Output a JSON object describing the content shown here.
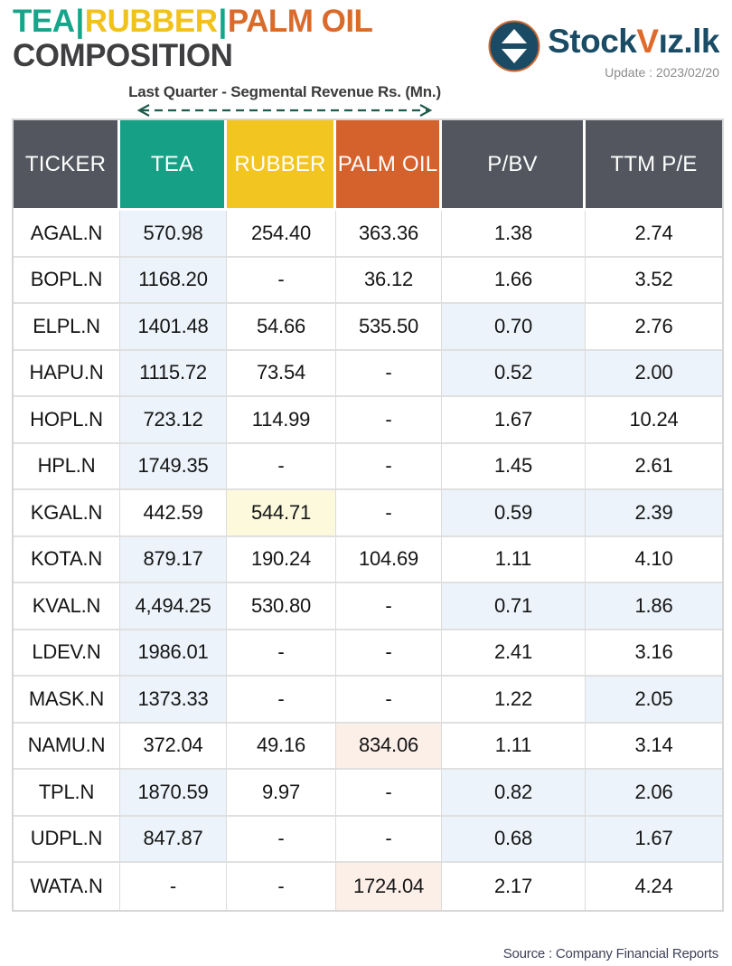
{
  "header": {
    "title": {
      "segments": [
        {
          "text": "TEA",
          "color": "#16A58A"
        },
        {
          "text": "|",
          "color": "#16A58A"
        },
        {
          "text": "RUBBER",
          "color": "#F1C21B"
        },
        {
          "text": "|",
          "color": "#16A58A"
        },
        {
          "text": "PALM OIL",
          "color": "#D96B2B"
        }
      ],
      "line2": "COMPOSITION"
    },
    "brand": {
      "prefix": "Stock",
      "accent": "V",
      "suffix": "ız.lk",
      "update_label": "Update : 2023/02/20",
      "navy": "#1A4C66",
      "orange": "#E06A2B"
    },
    "annotation": "Last Quarter - Segmental Revenue Rs. (Mn.)",
    "icons": {
      "logo": "up-down-arrows-circle-icon",
      "arrow": "double-headed-dashed-arrow-icon",
      "arrow_color": "#1E5B4D"
    }
  },
  "table": {
    "columns": [
      {
        "label": "TICKER",
        "bg": "#53565E"
      },
      {
        "label": "TEA",
        "bg": "#16A085"
      },
      {
        "label": "RUBBER",
        "bg": "#F3C521"
      },
      {
        "label": "PALM OIL",
        "bg": "#D5612C"
      },
      {
        "label": "P/BV",
        "bg": "#53565E"
      },
      {
        "label": "TTM P/E",
        "bg": "#53565E"
      }
    ],
    "highlight_colors": {
      "blue": "#ECF3FA",
      "yellow": "#FCF9DD",
      "pink": "#FCEFE8"
    },
    "rows": [
      {
        "ticker": "AGAL.N",
        "cells": [
          {
            "text": "570.98",
            "hl": "blue"
          },
          {
            "text": "254.40"
          },
          {
            "text": "363.36"
          },
          {
            "text": "1.38"
          },
          {
            "text": "2.74"
          }
        ]
      },
      {
        "ticker": "BOPL.N",
        "cells": [
          {
            "text": "1168.20",
            "hl": "blue"
          },
          {
            "text": "-"
          },
          {
            "text": "36.12"
          },
          {
            "text": "1.66"
          },
          {
            "text": "3.52"
          }
        ]
      },
      {
        "ticker": "ELPL.N",
        "cells": [
          {
            "text": "1401.48",
            "hl": "blue"
          },
          {
            "text": "54.66"
          },
          {
            "text": "535.50"
          },
          {
            "text": "0.70",
            "hl": "blue"
          },
          {
            "text": "2.76"
          }
        ]
      },
      {
        "ticker": "HAPU.N",
        "cells": [
          {
            "text": "1115.72",
            "hl": "blue"
          },
          {
            "text": "73.54"
          },
          {
            "text": "-"
          },
          {
            "text": "0.52",
            "hl": "blue"
          },
          {
            "text": "2.00",
            "hl": "blue"
          }
        ]
      },
      {
        "ticker": "HOPL.N",
        "cells": [
          {
            "text": "723.12",
            "hl": "blue"
          },
          {
            "text": "114.99"
          },
          {
            "text": "-"
          },
          {
            "text": "1.67"
          },
          {
            "text": "10.24"
          }
        ]
      },
      {
        "ticker": "HPL.N",
        "cells": [
          {
            "text": "1749.35",
            "hl": "blue"
          },
          {
            "text": "-"
          },
          {
            "text": "-"
          },
          {
            "text": "1.45"
          },
          {
            "text": "2.61"
          }
        ]
      },
      {
        "ticker": "KGAL.N",
        "cells": [
          {
            "text": "442.59"
          },
          {
            "text": "544.71",
            "hl": "yellow"
          },
          {
            "text": "-"
          },
          {
            "text": "0.59",
            "hl": "blue"
          },
          {
            "text": "2.39",
            "hl": "blue"
          }
        ]
      },
      {
        "ticker": "KOTA.N",
        "cells": [
          {
            "text": "879.17",
            "hl": "blue"
          },
          {
            "text": "190.24"
          },
          {
            "text": "104.69"
          },
          {
            "text": "1.11"
          },
          {
            "text": "4.10"
          }
        ]
      },
      {
        "ticker": "KVAL.N",
        "cells": [
          {
            "text": "4,494.25",
            "hl": "blue"
          },
          {
            "text": "530.80"
          },
          {
            "text": "-"
          },
          {
            "text": "0.71",
            "hl": "blue"
          },
          {
            "text": "1.86",
            "hl": "blue"
          }
        ]
      },
      {
        "ticker": "LDEV.N",
        "cells": [
          {
            "text": "1986.01",
            "hl": "blue"
          },
          {
            "text": "-"
          },
          {
            "text": "-"
          },
          {
            "text": "2.41"
          },
          {
            "text": "3.16"
          }
        ]
      },
      {
        "ticker": "MASK.N",
        "cells": [
          {
            "text": "1373.33",
            "hl": "blue"
          },
          {
            "text": "-"
          },
          {
            "text": "-"
          },
          {
            "text": "1.22"
          },
          {
            "text": "2.05",
            "hl": "blue"
          }
        ]
      },
      {
        "ticker": "NAMU.N",
        "cells": [
          {
            "text": "372.04"
          },
          {
            "text": "49.16"
          },
          {
            "text": "834.06",
            "hl": "pink"
          },
          {
            "text": "1.11"
          },
          {
            "text": "3.14"
          }
        ]
      },
      {
        "ticker": "TPL.N",
        "cells": [
          {
            "text": "1870.59",
            "hl": "blue"
          },
          {
            "text": "9.97"
          },
          {
            "text": "-"
          },
          {
            "text": "0.82",
            "hl": "blue"
          },
          {
            "text": "2.06",
            "hl": "blue"
          }
        ]
      },
      {
        "ticker": "UDPL.N",
        "cells": [
          {
            "text": "847.87",
            "hl": "blue"
          },
          {
            "text": "-"
          },
          {
            "text": "-"
          },
          {
            "text": "0.68",
            "hl": "blue"
          },
          {
            "text": "1.67",
            "hl": "blue"
          }
        ]
      },
      {
        "ticker": "WATA.N",
        "cells": [
          {
            "text": "-"
          },
          {
            "text": "-"
          },
          {
            "text": "1724.04",
            "hl": "pink"
          },
          {
            "text": "2.17"
          },
          {
            "text": "4.24"
          }
        ]
      }
    ]
  },
  "footer": {
    "source": "Source : Company Financial Reports"
  },
  "chart_data": {
    "type": "table",
    "title": "TEA|RUBBER|PALM OIL COMPOSITION",
    "subtitle": "Last Quarter - Segmental Revenue Rs. (Mn.)",
    "update": "2023/02/20",
    "columns": [
      "TICKER",
      "TEA",
      "RUBBER",
      "PALM OIL",
      "P/BV",
      "TTM P/E"
    ],
    "rows": [
      [
        "AGAL.N",
        570.98,
        254.4,
        363.36,
        1.38,
        2.74
      ],
      [
        "BOPL.N",
        1168.2,
        null,
        36.12,
        1.66,
        3.52
      ],
      [
        "ELPL.N",
        1401.48,
        54.66,
        535.5,
        0.7,
        2.76
      ],
      [
        "HAPU.N",
        1115.72,
        73.54,
        null,
        0.52,
        2.0
      ],
      [
        "HOPL.N",
        723.12,
        114.99,
        null,
        1.67,
        10.24
      ],
      [
        "HPL.N",
        1749.35,
        null,
        null,
        1.45,
        2.61
      ],
      [
        "KGAL.N",
        442.59,
        544.71,
        null,
        0.59,
        2.39
      ],
      [
        "KOTA.N",
        879.17,
        190.24,
        104.69,
        1.11,
        4.1
      ],
      [
        "KVAL.N",
        4494.25,
        530.8,
        null,
        0.71,
        1.86
      ],
      [
        "LDEV.N",
        1986.01,
        null,
        null,
        2.41,
        3.16
      ],
      [
        "MASK.N",
        1373.33,
        null,
        null,
        1.22,
        2.05
      ],
      [
        "NAMU.N",
        372.04,
        49.16,
        834.06,
        1.11,
        3.14
      ],
      [
        "TPL.N",
        1870.59,
        9.97,
        null,
        0.82,
        2.06
      ],
      [
        "UDPL.N",
        847.87,
        null,
        null,
        0.68,
        1.67
      ],
      [
        "WATA.N",
        null,
        null,
        1724.04,
        2.17,
        4.24
      ]
    ],
    "source": "Source : Company Financial Reports"
  }
}
